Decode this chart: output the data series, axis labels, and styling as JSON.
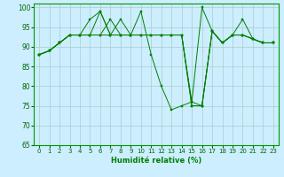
{
  "xlabel": "Humidité relative (%)",
  "background_color": "#cceeff",
  "grid_color": "#aacccc",
  "line_color": "#008000",
  "xlim": [
    -0.5,
    23.5
  ],
  "ylim": [
    65,
    101
  ],
  "yticks": [
    65,
    70,
    75,
    80,
    85,
    90,
    95,
    100
  ],
  "xticks": [
    0,
    1,
    2,
    3,
    4,
    5,
    6,
    7,
    8,
    9,
    10,
    11,
    12,
    13,
    14,
    15,
    16,
    17,
    18,
    19,
    20,
    21,
    22,
    23
  ],
  "series": [
    [
      88,
      89,
      91,
      93,
      93,
      97,
      99,
      93,
      97,
      93,
      99,
      88,
      80,
      74,
      75,
      76,
      100,
      94,
      91,
      93,
      97,
      92,
      91,
      91
    ],
    [
      88,
      89,
      91,
      93,
      93,
      93,
      93,
      93,
      93,
      93,
      93,
      93,
      93,
      93,
      93,
      75,
      75,
      94,
      91,
      93,
      93,
      92,
      91,
      91
    ],
    [
      88,
      89,
      91,
      93,
      93,
      93,
      99,
      93,
      93,
      93,
      93,
      93,
      93,
      93,
      93,
      76,
      75,
      94,
      91,
      93,
      93,
      92,
      91,
      91
    ],
    [
      88,
      89,
      91,
      93,
      93,
      93,
      93,
      97,
      93,
      93,
      93,
      93,
      93,
      93,
      93,
      75,
      75,
      94,
      91,
      93,
      93,
      92,
      91,
      91
    ]
  ]
}
